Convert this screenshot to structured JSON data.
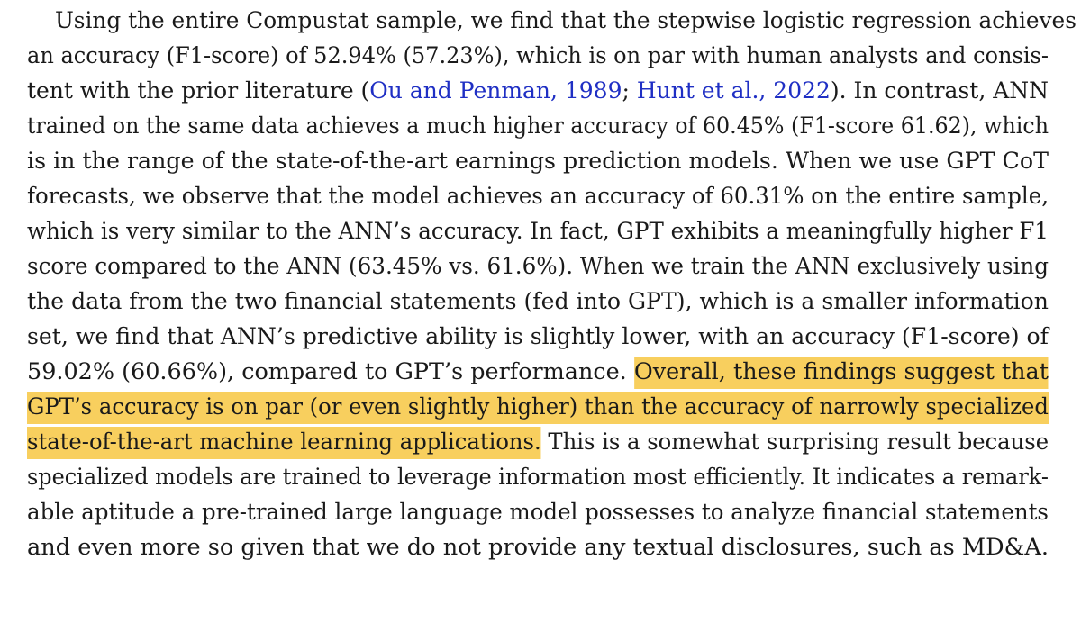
{
  "paragraph": {
    "l1": "Using the entire Compustat sample, we find that the stepwise logistic regression achieves",
    "l2": "an accuracy (F1-score) of 52.94% (57.23%), which is on par with human analysts and consis-",
    "l3_a": "tent with the prior literature (",
    "l3_c1": "Ou and Penman, 1989",
    "l3_b": "; ",
    "l3_c2": "Hunt et al., 2022",
    "l3_d": "). In contrast, ANN",
    "l4": "trained on the same data achieves a much higher accuracy of 60.45% (F1-score 61.62), which",
    "l5": "is in the range of the state-of-the-art earnings prediction models. When we use GPT CoT",
    "l6": "forecasts, we observe that the model achieves an accuracy of 60.31% on the entire sample,",
    "l7": "which is very similar to the ANN’s accuracy. In fact, GPT exhibits a meaningfully higher F1",
    "l8": "score compared to the ANN (63.45% vs. 61.6%). When we train the ANN exclusively using",
    "l9": "the data from the two financial statements (fed into GPT), which is a smaller information",
    "l10": "set, we find that ANN’s predictive ability is slightly lower, with an accuracy (F1-score) of",
    "l11_a": "59.02% (60.66%), compared to GPT’s performance. ",
    "l11_hl": "Overall, these findings suggest that",
    "l12_hl": "GPT’s accuracy is on par (or even slightly higher) than the accuracy of narrowly specialized",
    "l13_hl": "state-of-the-art machine learning applications.",
    "l13_b": " This is a somewhat surprising result because",
    "l14": "specialized models are trained to leverage information most efficiently. It indicates a remark-",
    "l15": "able aptitude a pre-trained large language model possesses to analyze financial statements",
    "l16": "and even more so given that we do not provide any textual disclosures, such as MD&A."
  },
  "colors": {
    "highlight": "#f8cf5e",
    "citation": "#1f2fc4",
    "text": "#1a1a1a"
  }
}
